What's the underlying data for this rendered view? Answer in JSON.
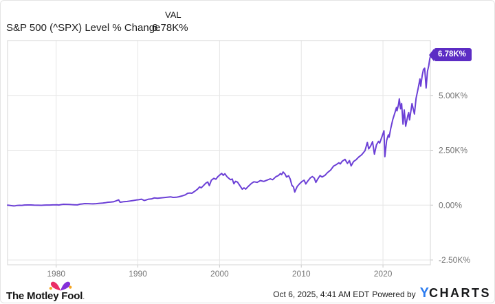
{
  "header": {
    "title": "S&P 500 (^SPX) Level % Change",
    "col_label": "VAL",
    "value": "6.78K%"
  },
  "badge": {
    "text": "6.78K%",
    "bg": "#5c2cc4"
  },
  "chart_data": {
    "type": "line",
    "title": "S&P 500 (^SPX) Level % Change",
    "xlabel": "",
    "ylabel": "",
    "legend": "none",
    "grid": true,
    "x_range": [
      1974.05,
      2025.8
    ],
    "y_range": [
      -2719,
      7500
    ],
    "x_ticks": [
      1980,
      1990,
      2000,
      2010,
      2020
    ],
    "y_ticks": [
      {
        "value": 5000,
        "label": "5.00K%"
      },
      {
        "value": 2500,
        "label": "2.50K%"
      },
      {
        "value": 0,
        "label": "0.00%"
      },
      {
        "value": -2500,
        "label": "-2.50K%"
      }
    ],
    "line_color": "#6b3fd6",
    "grid_color": "#e6e6e6",
    "border_color": "#d5d5d5",
    "tick_color": "#c9c9c9",
    "label_color": "#757575",
    "series": [
      {
        "name": "S&P 500 (^SPX) Level % Change",
        "final_label": "6.78K%",
        "points": [
          [
            1974.05,
            0
          ],
          [
            1974.3,
            -10
          ],
          [
            1974.6,
            -26
          ],
          [
            1974.8,
            -36
          ],
          [
            1975.0,
            -28
          ],
          [
            1975.2,
            -15
          ],
          [
            1975.5,
            -8
          ],
          [
            1975.8,
            -10
          ],
          [
            1976.1,
            4
          ],
          [
            1976.5,
            7
          ],
          [
            1976.9,
            9
          ],
          [
            1977.3,
            0
          ],
          [
            1977.8,
            -5
          ],
          [
            1978.2,
            -9
          ],
          [
            1978.5,
            -2
          ],
          [
            1978.8,
            4
          ],
          [
            1979.2,
            4
          ],
          [
            1979.6,
            10
          ],
          [
            1979.9,
            11
          ],
          [
            1980.1,
            14
          ],
          [
            1980.3,
            4
          ],
          [
            1980.6,
            25
          ],
          [
            1980.9,
            41
          ],
          [
            1981.2,
            36
          ],
          [
            1981.6,
            34
          ],
          [
            1981.9,
            25
          ],
          [
            1982.2,
            18
          ],
          [
            1982.6,
            11
          ],
          [
            1982.9,
            44
          ],
          [
            1983.2,
            55
          ],
          [
            1983.5,
            70
          ],
          [
            1983.9,
            68
          ],
          [
            1984.2,
            60
          ],
          [
            1984.5,
            57
          ],
          [
            1984.9,
            69
          ],
          [
            1985.3,
            83
          ],
          [
            1985.7,
            94
          ],
          [
            1986.0,
            108
          ],
          [
            1986.3,
            130
          ],
          [
            1986.7,
            140
          ],
          [
            1987.0,
            152
          ],
          [
            1987.3,
            190
          ],
          [
            1987.65,
            240
          ],
          [
            1987.82,
            132
          ],
          [
            1988.0,
            140
          ],
          [
            1988.3,
            158
          ],
          [
            1988.7,
            168
          ],
          [
            1989.0,
            188
          ],
          [
            1989.4,
            210
          ],
          [
            1989.8,
            235
          ],
          [
            1990.1,
            245
          ],
          [
            1990.45,
            270
          ],
          [
            1990.78,
            213
          ],
          [
            1991.0,
            233
          ],
          [
            1991.3,
            270
          ],
          [
            1991.7,
            288
          ],
          [
            1992.0,
            328
          ],
          [
            1992.4,
            315
          ],
          [
            1992.8,
            330
          ],
          [
            1993.2,
            347
          ],
          [
            1993.6,
            362
          ],
          [
            1994.0,
            378
          ],
          [
            1994.3,
            352
          ],
          [
            1994.7,
            360
          ],
          [
            1995.0,
            380
          ],
          [
            1995.4,
            420
          ],
          [
            1995.8,
            470
          ],
          [
            1996.1,
            540
          ],
          [
            1996.4,
            555
          ],
          [
            1996.6,
            540
          ],
          [
            1997.0,
            640
          ],
          [
            1997.3,
            726
          ],
          [
            1997.55,
            830
          ],
          [
            1997.75,
            790
          ],
          [
            1998.0,
            880
          ],
          [
            1998.3,
            1000
          ],
          [
            1998.55,
            1056
          ],
          [
            1998.75,
            891
          ],
          [
            1999.0,
            1140
          ],
          [
            1999.3,
            1221
          ],
          [
            1999.55,
            1180
          ],
          [
            1999.8,
            1300
          ],
          [
            2000.1,
            1400
          ],
          [
            2000.25,
            1448
          ],
          [
            2000.45,
            1360
          ],
          [
            2000.65,
            1430
          ],
          [
            2000.9,
            1300
          ],
          [
            2001.1,
            1230
          ],
          [
            2001.35,
            1160
          ],
          [
            2001.55,
            1190
          ],
          [
            2001.75,
            973
          ],
          [
            2001.95,
            1087
          ],
          [
            2002.2,
            1050
          ],
          [
            2002.5,
            880
          ],
          [
            2002.78,
            726
          ],
          [
            2003.0,
            790
          ],
          [
            2003.2,
            730
          ],
          [
            2003.5,
            850
          ],
          [
            2003.9,
            990
          ],
          [
            2004.2,
            1066
          ],
          [
            2004.6,
            1040
          ],
          [
            2005.0,
            1120
          ],
          [
            2005.4,
            1080
          ],
          [
            2005.8,
            1140
          ],
          [
            2006.2,
            1200
          ],
          [
            2006.5,
            1160
          ],
          [
            2006.9,
            1300
          ],
          [
            2007.2,
            1350
          ],
          [
            2007.45,
            1440
          ],
          [
            2007.6,
            1390
          ],
          [
            2007.78,
            1510
          ],
          [
            2008.0,
            1420
          ],
          [
            2008.2,
            1280
          ],
          [
            2008.45,
            1340
          ],
          [
            2008.65,
            1180
          ],
          [
            2008.85,
            900
          ],
          [
            2009.05,
            830
          ],
          [
            2009.2,
            599
          ],
          [
            2009.5,
            850
          ],
          [
            2009.8,
            980
          ],
          [
            2010.1,
            1080
          ],
          [
            2010.35,
            1138
          ],
          [
            2010.55,
            963
          ],
          [
            2010.8,
            1100
          ],
          [
            2011.1,
            1240
          ],
          [
            2011.35,
            1303
          ],
          [
            2011.6,
            1230
          ],
          [
            2011.78,
            1035
          ],
          [
            2012.0,
            1180
          ],
          [
            2012.3,
            1350
          ],
          [
            2012.55,
            1280
          ],
          [
            2012.9,
            1360
          ],
          [
            2013.2,
            1480
          ],
          [
            2013.6,
            1600
          ],
          [
            2013.95,
            1780
          ],
          [
            2014.3,
            1850
          ],
          [
            2014.6,
            1930
          ],
          [
            2014.78,
            1880
          ],
          [
            2015.0,
            2000
          ],
          [
            2015.35,
            2088
          ],
          [
            2015.65,
            1900
          ],
          [
            2015.9,
            2030
          ],
          [
            2016.1,
            1788
          ],
          [
            2016.4,
            1990
          ],
          [
            2016.7,
            2067
          ],
          [
            2017.0,
            2180
          ],
          [
            2017.4,
            2300
          ],
          [
            2017.8,
            2480
          ],
          [
            2018.08,
            2862
          ],
          [
            2018.25,
            2562
          ],
          [
            2018.5,
            2700
          ],
          [
            2018.72,
            2893
          ],
          [
            2018.95,
            2325
          ],
          [
            2019.2,
            2750
          ],
          [
            2019.45,
            2900
          ],
          [
            2019.6,
            2830
          ],
          [
            2019.9,
            3150
          ],
          [
            2020.12,
            3388
          ],
          [
            2020.23,
            2209
          ],
          [
            2020.45,
            2950
          ],
          [
            2020.65,
            3200
          ],
          [
            2020.75,
            3100
          ],
          [
            2020.95,
            3500
          ],
          [
            2021.2,
            3900
          ],
          [
            2021.45,
            4200
          ],
          [
            2021.65,
            4450
          ],
          [
            2021.72,
            4300
          ],
          [
            2021.9,
            4600
          ],
          [
            2022.0,
            4843
          ],
          [
            2022.15,
            4389
          ],
          [
            2022.28,
            4626
          ],
          [
            2022.45,
            3687
          ],
          [
            2022.6,
            4337
          ],
          [
            2022.78,
            3594
          ],
          [
            2023.05,
            4100
          ],
          [
            2023.15,
            4214
          ],
          [
            2023.25,
            3883
          ],
          [
            2023.55,
            4626
          ],
          [
            2023.85,
            4152
          ],
          [
            2024.05,
            4870
          ],
          [
            2024.3,
            5318
          ],
          [
            2024.52,
            5751
          ],
          [
            2024.62,
            5421
          ],
          [
            2024.8,
            5900
          ],
          [
            2024.95,
            6185
          ],
          [
            2025.1,
            6240
          ],
          [
            2025.28,
            5340
          ],
          [
            2025.45,
            6100
          ],
          [
            2025.6,
            6350
          ],
          [
            2025.72,
            6650
          ],
          [
            2025.8,
            6780
          ]
        ]
      }
    ]
  },
  "footer": {
    "brand": "The Motley Fool",
    "brand_mark": ".",
    "timestamp": "Oct 6, 2025, 4:41 AM EDT",
    "powered_by": "Powered by",
    "ycharts_y": "Y",
    "ycharts_rest": "CHARTS",
    "brand_colors": {
      "hat_left": "#ea2e66",
      "hat_right": "#8430d9",
      "hat_bell": "#f5a623",
      "ycharts_blue": "#2d7df0"
    }
  }
}
